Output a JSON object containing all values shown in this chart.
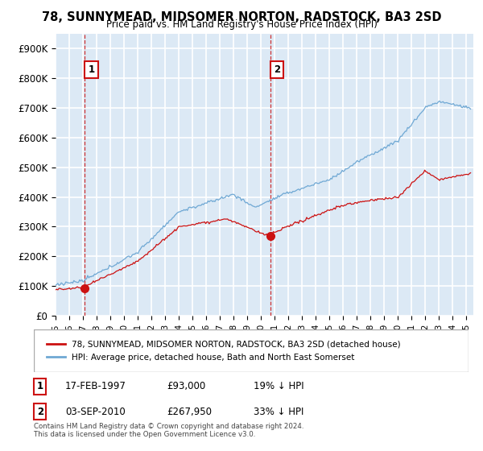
{
  "title": "78, SUNNYMEAD, MIDSOMER NORTON, RADSTOCK, BA3 2SD",
  "subtitle": "Price paid vs. HM Land Registry's House Price Index (HPI)",
  "ylabel_ticks": [
    "£0",
    "£100K",
    "£200K",
    "£300K",
    "£400K",
    "£500K",
    "£600K",
    "£700K",
    "£800K",
    "£900K"
  ],
  "ytick_values": [
    0,
    100000,
    200000,
    300000,
    400000,
    500000,
    600000,
    700000,
    800000,
    900000
  ],
  "ylim": [
    0,
    950000
  ],
  "xlim_start": 1995.0,
  "xlim_end": 2025.5,
  "plot_bg_color": "#dce9f5",
  "grid_color": "#ffffff",
  "hpi_line_color": "#6fa8d4",
  "price_line_color": "#cc1111",
  "sale1_x": 1997.125,
  "sale1_y": 93000,
  "sale2_x": 2010.67,
  "sale2_y": 267950,
  "legend_house": "78, SUNNYMEAD, MIDSOMER NORTON, RADSTOCK, BA3 2SD (detached house)",
  "legend_hpi": "HPI: Average price, detached house, Bath and North East Somerset",
  "note1_label": "1",
  "note1_date": "17-FEB-1997",
  "note1_price": "£93,000",
  "note1_hpi": "19% ↓ HPI",
  "note2_label": "2",
  "note2_date": "03-SEP-2010",
  "note2_price": "£267,950",
  "note2_hpi": "33% ↓ HPI",
  "copyright": "Contains HM Land Registry data © Crown copyright and database right 2024.\nThis data is licensed under the Open Government Licence v3.0."
}
